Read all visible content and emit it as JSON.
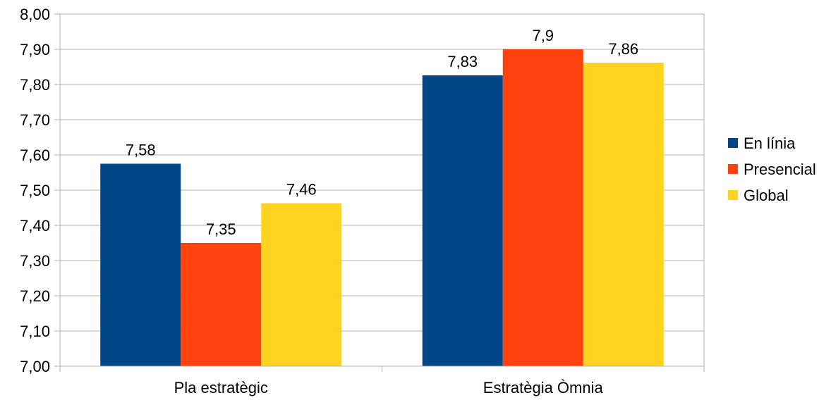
{
  "chart_data": {
    "type": "bar",
    "categories": [
      "Pla estratègic",
      "Estratègia Òmnia"
    ],
    "series": [
      {
        "name": "En línia",
        "values": [
          7.575,
          7.826
        ],
        "labels": [
          "7,58",
          "7,83"
        ],
        "color": "#004586"
      },
      {
        "name": "Presencial",
        "values": [
          7.35,
          7.9
        ],
        "labels": [
          "7,35",
          "7,9"
        ],
        "color": "#ff420e"
      },
      {
        "name": "Global",
        "values": [
          7.463,
          7.862
        ],
        "labels": [
          "7,46",
          "7,86"
        ],
        "color": "#ffd320"
      }
    ],
    "y_ticks": [
      "7,00",
      "7,10",
      "7,20",
      "7,30",
      "7,40",
      "7,50",
      "7,60",
      "7,70",
      "7,80",
      "7,90",
      "8,00"
    ],
    "ylim": [
      7.0,
      8.0
    ],
    "title": "",
    "xlabel": "",
    "ylabel": "",
    "grid": true,
    "legend_position": "right"
  }
}
